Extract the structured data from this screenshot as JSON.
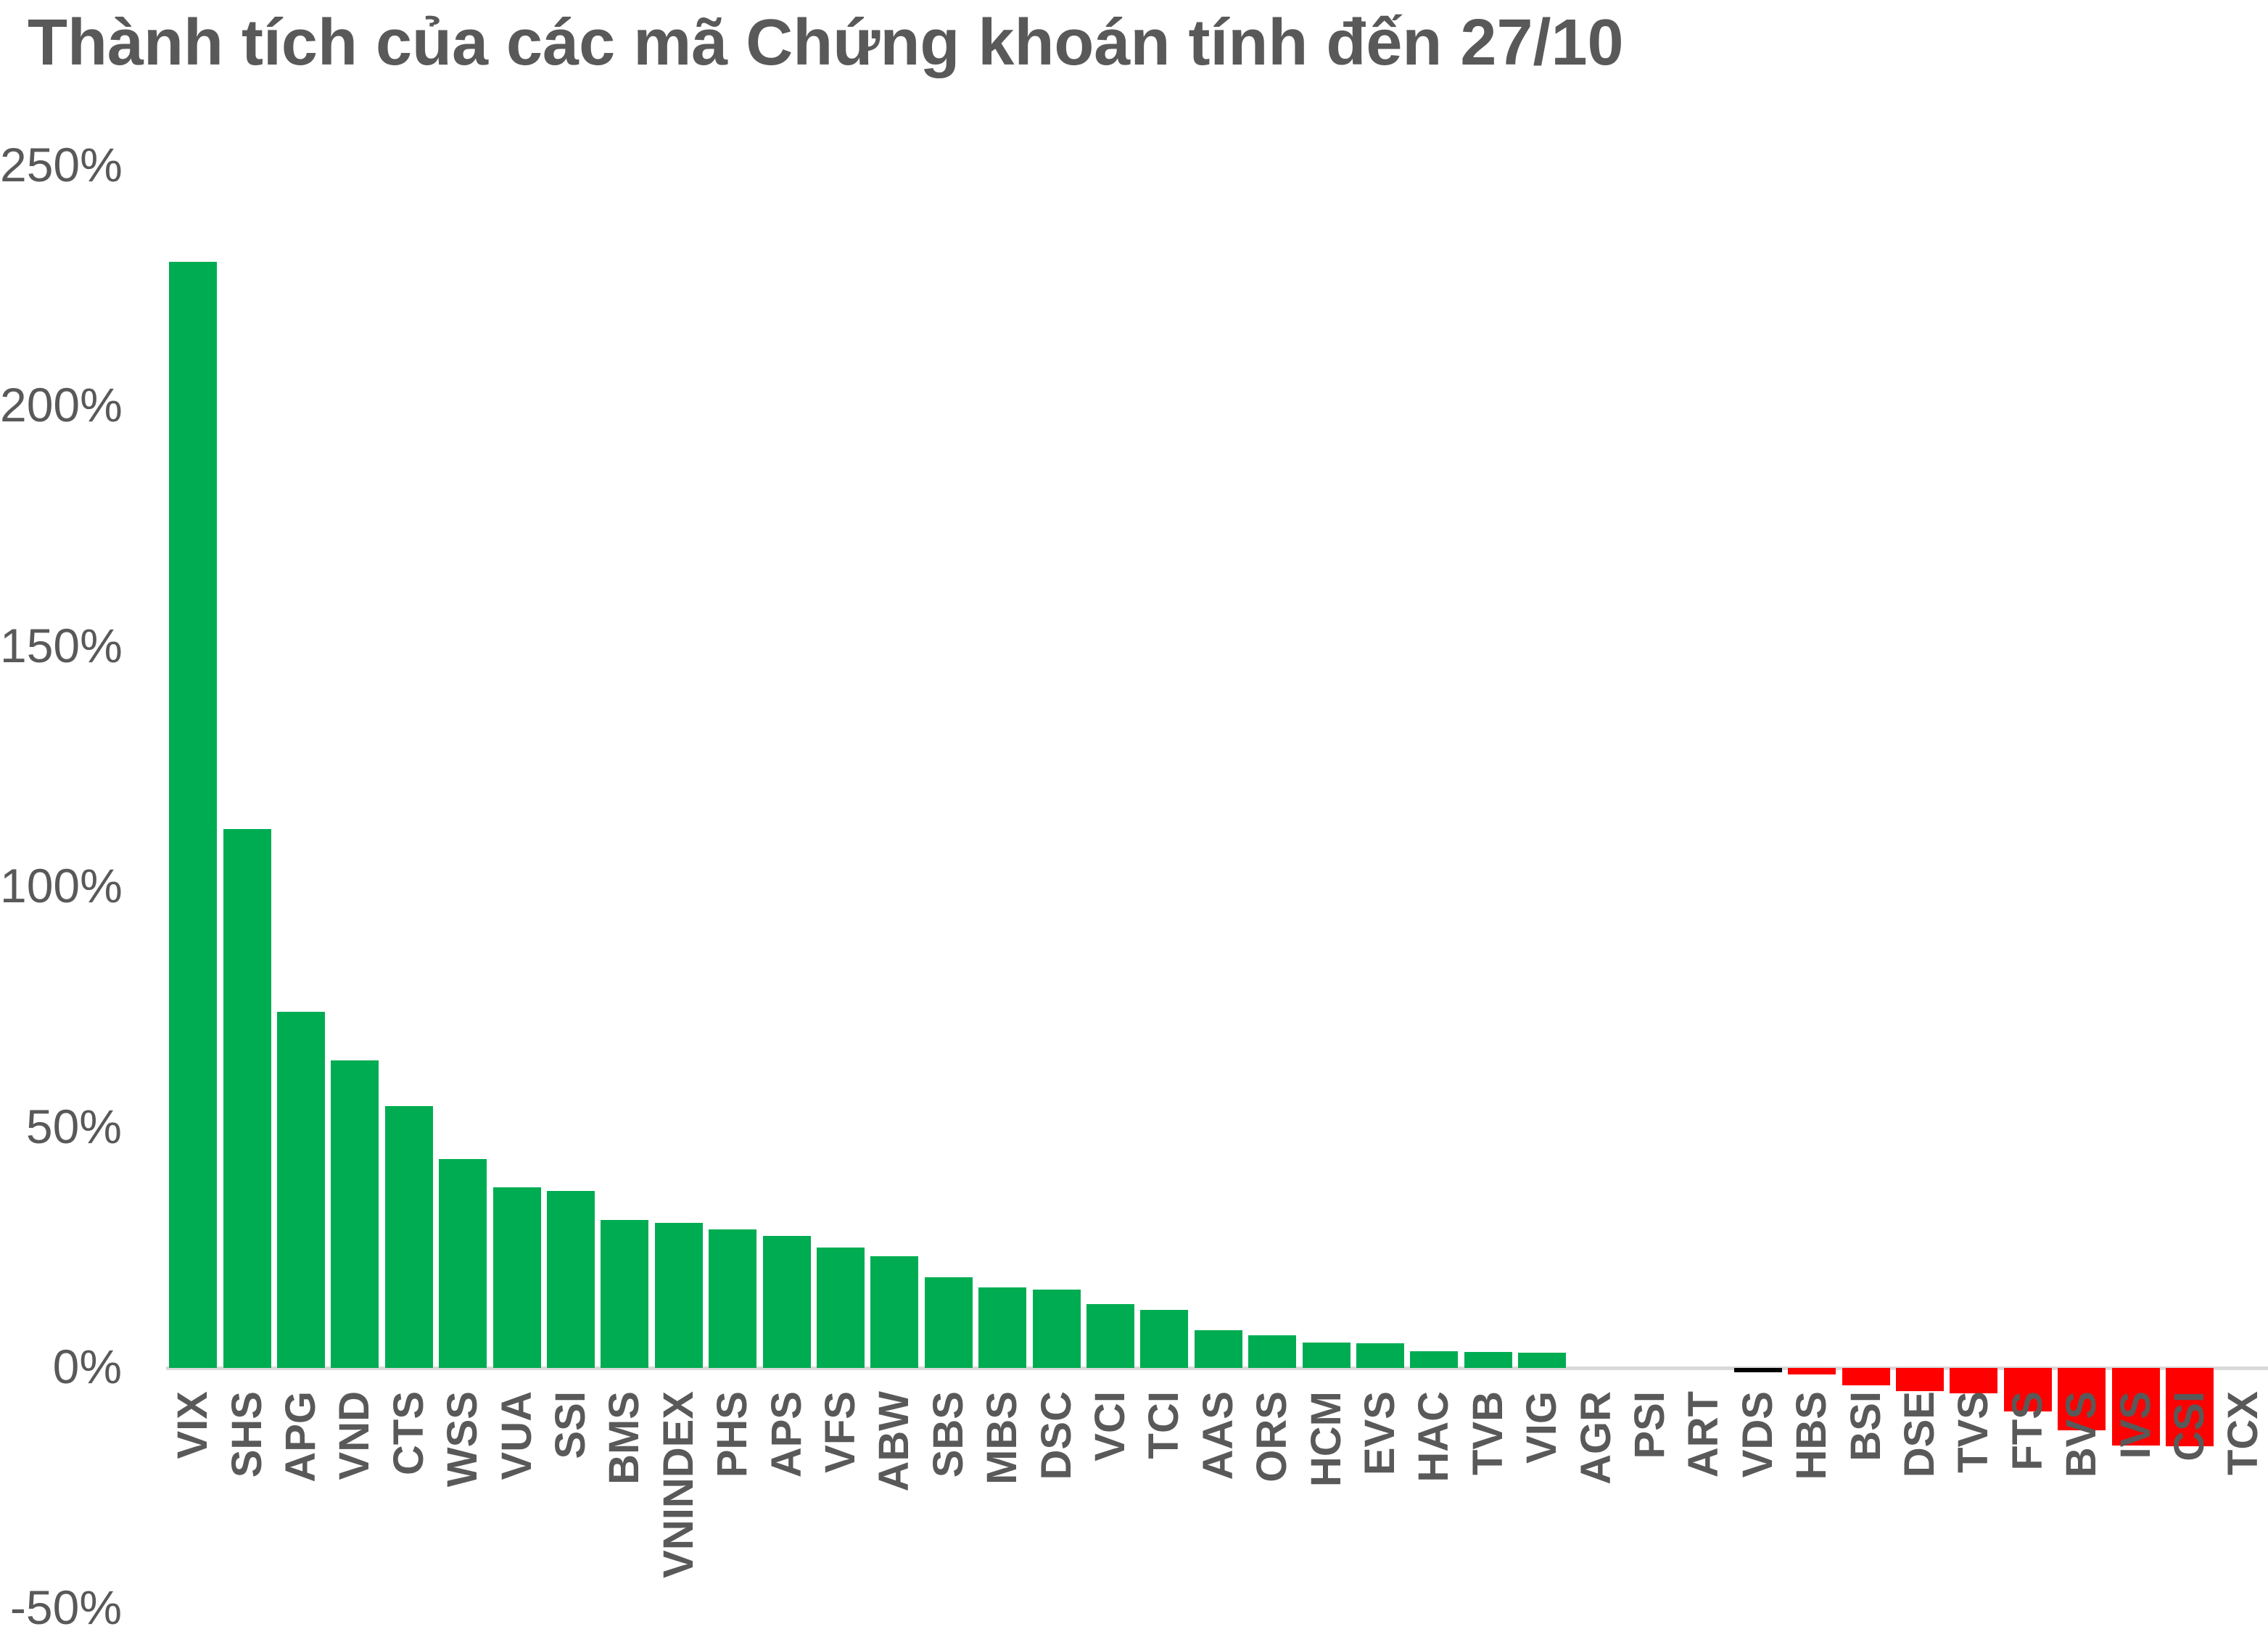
{
  "title": "Thành tích của các mã Chứng khoán tính đến 27/10",
  "colors": {
    "positive": "#00AC52",
    "negative": "#FF0000",
    "vds_bar": "#000000",
    "axis_text": "#595959",
    "title_text": "#595959",
    "baseline": "#D9D9D9",
    "background": "#FFFFFF"
  },
  "chart_data": {
    "type": "bar",
    "title": "Thành tích của các mã Chứng khoán tính đến 27/10",
    "xlabel": "",
    "ylabel": "",
    "ylim": [
      -50,
      250
    ],
    "grid": false,
    "legend": "none",
    "yticks": [
      {
        "value": 250,
        "label": "250%"
      },
      {
        "value": 200,
        "label": "200%"
      },
      {
        "value": 150,
        "label": "150%"
      },
      {
        "value": 100,
        "label": "100%"
      },
      {
        "value": 50,
        "label": "50%"
      },
      {
        "value": 0,
        "label": "0%"
      },
      {
        "value": -50,
        "label": "-50%"
      }
    ],
    "categories": [
      "VIX",
      "SHS",
      "APG",
      "VND",
      "CTS",
      "WSS",
      "VUA",
      "SSI",
      "BMS",
      "VNINDEX",
      "PHS",
      "APS",
      "VFS",
      "ABW",
      "SBS",
      "MBS",
      "DSC",
      "VCI",
      "TCI",
      "AAS",
      "ORS",
      "HCM",
      "EVS",
      "HAC",
      "TVB",
      "VIG",
      "AGR",
      "PSI",
      "ART",
      "VDS",
      "HBS",
      "BSI",
      "DSE",
      "TVS",
      "FTS",
      "BVS",
      "IVS",
      "CSI",
      "TCX"
    ],
    "values": [
      230,
      112,
      74,
      64,
      54.5,
      43.5,
      37.6,
      36.8,
      30.8,
      30.2,
      28.8,
      27.5,
      25,
      23.2,
      18.9,
      16.7,
      16.3,
      13.3,
      12.1,
      7.9,
      6.8,
      5.3,
      5.1,
      3.5,
      3.3,
      3.1,
      0,
      0,
      0,
      -0.9,
      -1.4,
      -3.6,
      -4.8,
      -5.3,
      -9.1,
      -13,
      -16.1,
      -16.3,
      0
    ],
    "bar_colors": [
      "#00AC52",
      "#00AC52",
      "#00AC52",
      "#00AC52",
      "#00AC52",
      "#00AC52",
      "#00AC52",
      "#00AC52",
      "#00AC52",
      "#00AC52",
      "#00AC52",
      "#00AC52",
      "#00AC52",
      "#00AC52",
      "#00AC52",
      "#00AC52",
      "#00AC52",
      "#00AC52",
      "#00AC52",
      "#00AC52",
      "#00AC52",
      "#00AC52",
      "#00AC52",
      "#00AC52",
      "#00AC52",
      "#00AC52",
      "#00AC52",
      "#00AC52",
      "#00AC52",
      "#000000",
      "#FF0000",
      "#FF0000",
      "#FF0000",
      "#FF0000",
      "#FF0000",
      "#FF0000",
      "#FF0000",
      "#FF0000",
      "#FF0000"
    ]
  }
}
